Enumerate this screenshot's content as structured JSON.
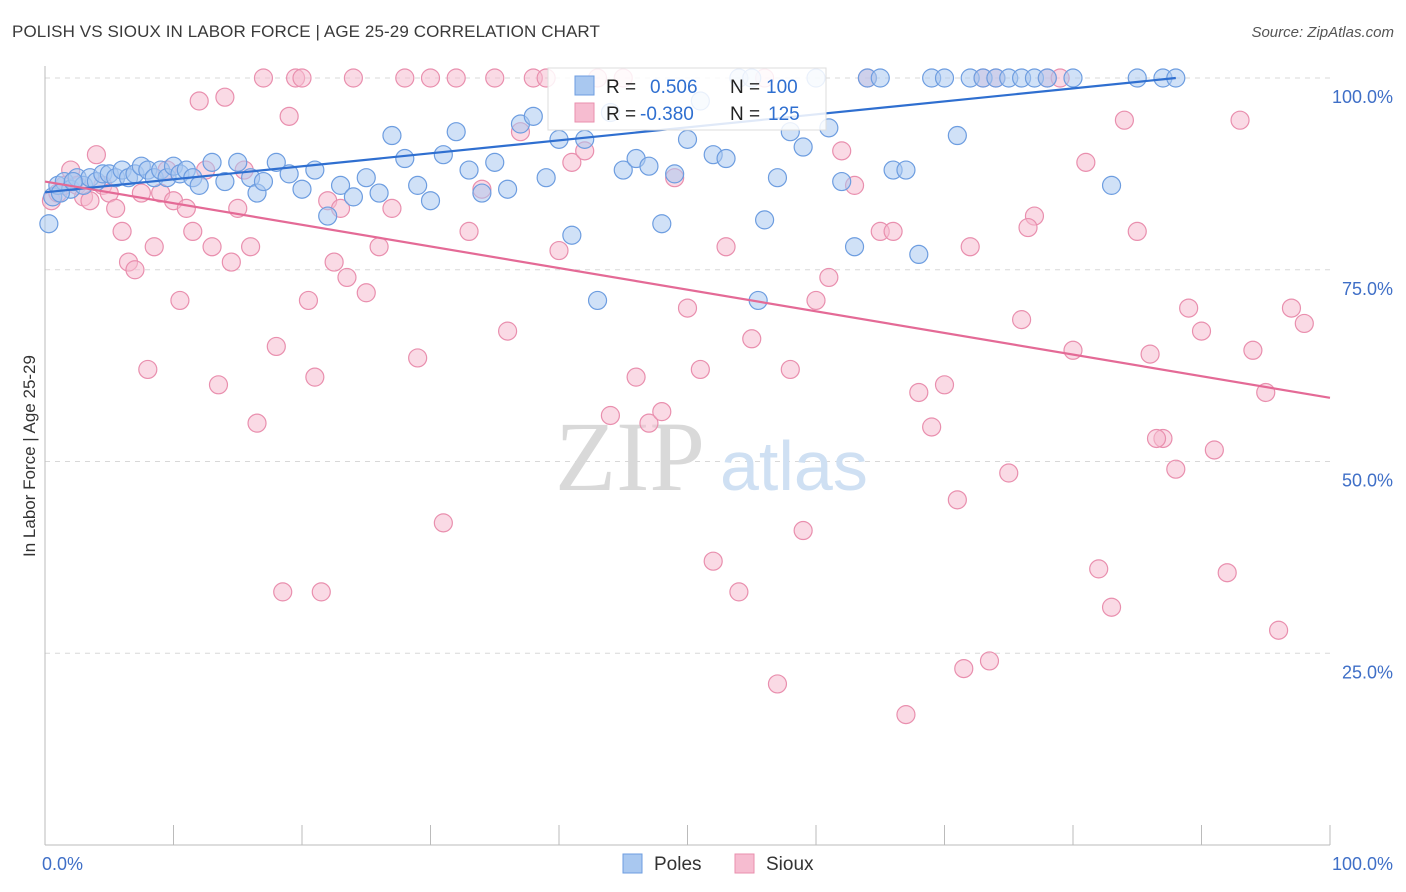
{
  "title": "POLISH VS SIOUX IN LABOR FORCE | AGE 25-29 CORRELATION CHART",
  "source": "Source: ZipAtlas.com",
  "watermark": {
    "zip": "ZIP",
    "atlas": "atlas"
  },
  "colors": {
    "poles_fill": "#a9c8f0",
    "poles_stroke": "#6d9de0",
    "poles_line": "#2f6fd0",
    "sioux_fill": "#f6bcd0",
    "sioux_stroke": "#e98fae",
    "sioux_line": "#e46a96",
    "tick_label": "#3f6fc7",
    "grid": "#d8d8d8"
  },
  "legend": {
    "rows": [
      {
        "r_label": "R =",
        "r_value": "0.506",
        "n_label": "N =",
        "n_value": "100"
      },
      {
        "r_label": "R =",
        "r_value": "-0.380",
        "n_label": "N =",
        "n_value": "125"
      }
    ]
  },
  "bottom_legend": [
    "Poles",
    "Sioux"
  ],
  "chart_data": {
    "type": "scatter",
    "title": "POLISH VS SIOUX IN LABOR FORCE | AGE 25-29 CORRELATION CHART",
    "xlabel": "",
    "ylabel": "In Labor Force | Age 25-29",
    "xlim": [
      0,
      100
    ],
    "ylim": [
      0,
      100
    ],
    "x_tick_labels": [
      "0.0%",
      "100.0%"
    ],
    "y_ticks": [
      25,
      50,
      75,
      100
    ],
    "y_tick_labels": [
      "25.0%",
      "50.0%",
      "75.0%",
      "100.0%"
    ],
    "grid": "horizontal dashed",
    "legend_position": "top-center",
    "series": [
      {
        "name": "Poles",
        "R": 0.506,
        "N": 100,
        "trend": {
          "x": [
            0,
            88
          ],
          "y": [
            85.1,
            100
          ]
        },
        "points": [
          [
            0.3,
            81
          ],
          [
            0.6,
            84.5
          ],
          [
            1,
            86
          ],
          [
            1.5,
            86.5
          ],
          [
            2,
            85.5
          ],
          [
            2.5,
            87
          ],
          [
            3,
            86
          ],
          [
            3.5,
            87
          ],
          [
            4,
            86.5
          ],
          [
            4.5,
            87.5
          ],
          [
            5,
            87.5
          ],
          [
            5.5,
            87
          ],
          [
            6,
            88
          ],
          [
            6.5,
            87
          ],
          [
            7,
            87.5
          ],
          [
            7.5,
            88.5
          ],
          [
            8,
            88
          ],
          [
            8.5,
            87
          ],
          [
            9,
            88
          ],
          [
            9.5,
            87
          ],
          [
            10,
            88.5
          ],
          [
            10.5,
            87.5
          ],
          [
            11,
            88
          ],
          [
            11.5,
            87
          ],
          [
            12,
            86
          ],
          [
            13,
            89
          ],
          [
            14,
            86.5
          ],
          [
            15,
            89
          ],
          [
            16,
            87
          ],
          [
            16.5,
            85
          ],
          [
            17,
            86.5
          ],
          [
            18,
            89
          ],
          [
            19,
            87.5
          ],
          [
            20,
            85.5
          ],
          [
            21,
            88
          ],
          [
            22,
            82
          ],
          [
            23,
            86
          ],
          [
            24,
            84.5
          ],
          [
            25,
            87
          ],
          [
            26,
            85
          ],
          [
            27,
            92.5
          ],
          [
            28,
            89.5
          ],
          [
            29,
            86
          ],
          [
            30,
            84
          ],
          [
            31,
            90
          ],
          [
            32,
            93
          ],
          [
            33,
            88
          ],
          [
            34,
            85
          ],
          [
            35,
            89
          ],
          [
            36,
            85.5
          ],
          [
            37,
            94
          ],
          [
            38,
            95
          ],
          [
            39,
            87
          ],
          [
            40,
            92
          ],
          [
            41,
            79.5
          ],
          [
            42,
            92
          ],
          [
            43,
            71
          ],
          [
            44,
            95.5
          ],
          [
            45,
            88
          ],
          [
            46,
            89.5
          ],
          [
            47,
            88.5
          ],
          [
            48,
            81
          ],
          [
            49,
            87.5
          ],
          [
            50,
            92
          ],
          [
            51,
            97
          ],
          [
            52,
            90
          ],
          [
            53,
            89.5
          ],
          [
            54,
            100
          ],
          [
            55,
            100
          ],
          [
            55.5,
            71
          ],
          [
            56,
            81.5
          ],
          [
            57,
            87
          ],
          [
            58,
            93
          ],
          [
            59,
            91
          ],
          [
            60,
            100
          ],
          [
            61,
            93.5
          ],
          [
            62,
            86.5
          ],
          [
            63,
            78
          ],
          [
            64,
            100
          ],
          [
            65,
            100
          ],
          [
            66,
            88
          ],
          [
            67,
            88
          ],
          [
            68,
            77
          ],
          [
            69,
            100
          ],
          [
            70,
            100
          ],
          [
            71,
            92.5
          ],
          [
            72,
            100
          ],
          [
            73,
            100
          ],
          [
            74,
            100
          ],
          [
            75,
            100
          ],
          [
            76,
            100
          ],
          [
            77,
            100
          ],
          [
            78,
            100
          ],
          [
            80,
            100
          ],
          [
            83,
            86
          ],
          [
            85,
            100
          ],
          [
            87,
            100
          ],
          [
            88,
            100
          ],
          [
            1.2,
            85
          ],
          [
            2.2,
            86.5
          ]
        ]
      },
      {
        "name": "Sioux",
        "R": -0.38,
        "N": 125,
        "trend": {
          "x": [
            0,
            100
          ],
          "y": [
            86.5,
            58.3
          ]
        },
        "points": [
          [
            0.5,
            84
          ],
          [
            1,
            85
          ],
          [
            1.5,
            86
          ],
          [
            2,
            88
          ],
          [
            2.5,
            86
          ],
          [
            3,
            84.5
          ],
          [
            3.5,
            84
          ],
          [
            4,
            90
          ],
          [
            4.5,
            86
          ],
          [
            5,
            85
          ],
          [
            5.5,
            83
          ],
          [
            6,
            80
          ],
          [
            6.5,
            76
          ],
          [
            7,
            75
          ],
          [
            7.5,
            85
          ],
          [
            8,
            62
          ],
          [
            8.5,
            78
          ],
          [
            9,
            85
          ],
          [
            9.5,
            88
          ],
          [
            10,
            84
          ],
          [
            10.5,
            71
          ],
          [
            11,
            83
          ],
          [
            11.5,
            80
          ],
          [
            12,
            97
          ],
          [
            12.5,
            88
          ],
          [
            13,
            78
          ],
          [
            13.5,
            60
          ],
          [
            14,
            97.5
          ],
          [
            14.5,
            76
          ],
          [
            15,
            83
          ],
          [
            15.5,
            88
          ],
          [
            16,
            78
          ],
          [
            16.5,
            55
          ],
          [
            17,
            100
          ],
          [
            18,
            65
          ],
          [
            18.5,
            33
          ],
          [
            19,
            95
          ],
          [
            19.5,
            100
          ],
          [
            20,
            100
          ],
          [
            20.5,
            71
          ],
          [
            21,
            61
          ],
          [
            21.5,
            33
          ],
          [
            22,
            84
          ],
          [
            22.5,
            76
          ],
          [
            23,
            83
          ],
          [
            23.5,
            74
          ],
          [
            24,
            100
          ],
          [
            25,
            72
          ],
          [
            26,
            78
          ],
          [
            27,
            83
          ],
          [
            28,
            100
          ],
          [
            29,
            63.5
          ],
          [
            30,
            100
          ],
          [
            31,
            42
          ],
          [
            32,
            100
          ],
          [
            33,
            80
          ],
          [
            34,
            85.5
          ],
          [
            35,
            100
          ],
          [
            36,
            67
          ],
          [
            37,
            93
          ],
          [
            38,
            100
          ],
          [
            39,
            100
          ],
          [
            40,
            77.5
          ],
          [
            41,
            89
          ],
          [
            42,
            90.5
          ],
          [
            43,
            100
          ],
          [
            44,
            56
          ],
          [
            45,
            100
          ],
          [
            46,
            61
          ],
          [
            47,
            55
          ],
          [
            48,
            56.5
          ],
          [
            49,
            87
          ],
          [
            50,
            70
          ],
          [
            51,
            62
          ],
          [
            52,
            37
          ],
          [
            53,
            78
          ],
          [
            54,
            33
          ],
          [
            55,
            66
          ],
          [
            56,
            100
          ],
          [
            57,
            21
          ],
          [
            58,
            62
          ],
          [
            59,
            41
          ],
          [
            60,
            71
          ],
          [
            61,
            74
          ],
          [
            62,
            90.5
          ],
          [
            63,
            86
          ],
          [
            64,
            100
          ],
          [
            65,
            80
          ],
          [
            66,
            80
          ],
          [
            67,
            17
          ],
          [
            68,
            59
          ],
          [
            69,
            54.5
          ],
          [
            70,
            60
          ],
          [
            71,
            45
          ],
          [
            72,
            78
          ],
          [
            73,
            100
          ],
          [
            74,
            100
          ],
          [
            75,
            48.5
          ],
          [
            76,
            68.5
          ],
          [
            77,
            82
          ],
          [
            78,
            100
          ],
          [
            79,
            100
          ],
          [
            80,
            64.5
          ],
          [
            81,
            89
          ],
          [
            82,
            36
          ],
          [
            83,
            31
          ],
          [
            84,
            94.5
          ],
          [
            85,
            80
          ],
          [
            86,
            64
          ],
          [
            87,
            53
          ],
          [
            88,
            49
          ],
          [
            89,
            70
          ],
          [
            90,
            67
          ],
          [
            91,
            51.5
          ],
          [
            92,
            35.5
          ],
          [
            93,
            94.5
          ],
          [
            94,
            64.5
          ],
          [
            95,
            59
          ],
          [
            96,
            28
          ],
          [
            97,
            70
          ],
          [
            98,
            68
          ],
          [
            86.5,
            53
          ],
          [
            73.5,
            24
          ],
          [
            71.5,
            23
          ],
          [
            76.5,
            80.5
          ]
        ]
      }
    ]
  }
}
